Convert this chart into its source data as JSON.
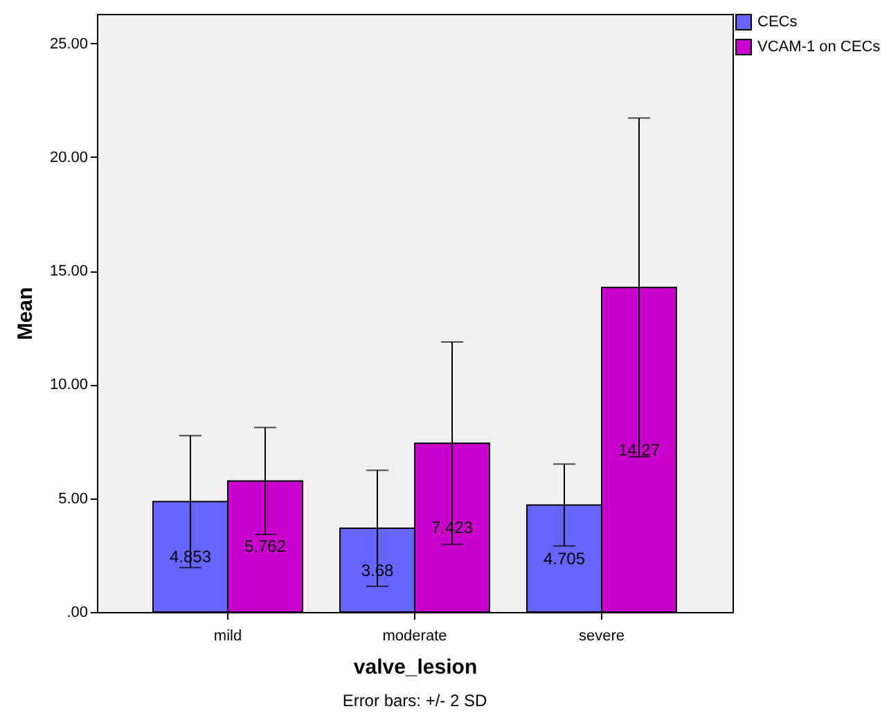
{
  "chart_data": {
    "type": "bar",
    "xlabel": "valve_lesion",
    "ylabel": "Mean",
    "categories": [
      "mild",
      "moderate",
      "severe"
    ],
    "series": [
      {
        "name": "CECs",
        "color": "#6666ff",
        "values": [
          4.853,
          3.68,
          4.705
        ],
        "errors": [
          2.9,
          2.55,
          1.8
        ]
      },
      {
        "name": "VCAM-1 on CECs",
        "color": "#cc00cc",
        "values": [
          5.762,
          7.423,
          14.27
        ],
        "errors": [
          2.35,
          4.45,
          7.45
        ]
      }
    ],
    "ylim": [
      0,
      26.3
    ],
    "yticks": [
      {
        "value": 0,
        "label": ".00"
      },
      {
        "value": 5,
        "label": "5.00"
      },
      {
        "value": 10,
        "label": "10.00"
      },
      {
        "value": 15,
        "label": "15.00"
      },
      {
        "value": 20,
        "label": "20.00"
      },
      {
        "value": 25,
        "label": "25.00"
      }
    ],
    "data_labels": true,
    "grid": false,
    "legend": "top right",
    "annotations": [
      "Error bars: +/- 2 SD"
    ]
  }
}
